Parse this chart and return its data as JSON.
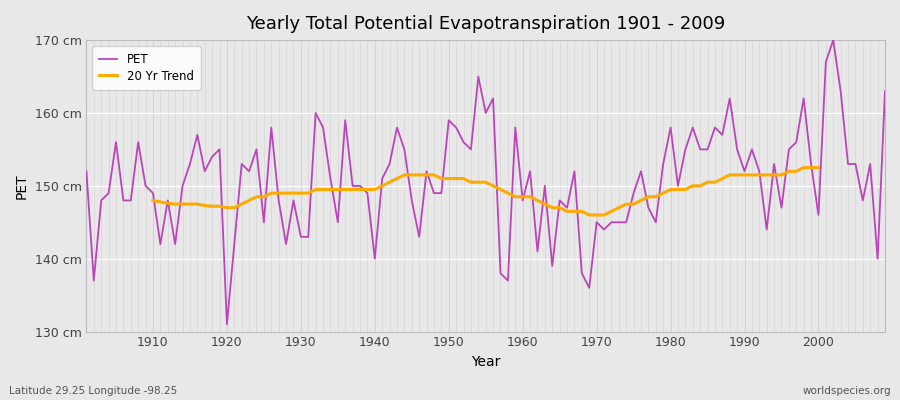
{
  "title": "Yearly Total Potential Evapotranspiration 1901 - 2009",
  "xlabel": "Year",
  "ylabel": "PET",
  "subtitle_left": "Latitude 29.25 Longitude -98.25",
  "subtitle_right": "worldspecies.org",
  "ylim": [
    130,
    170
  ],
  "yticks": [
    130,
    140,
    150,
    160,
    170
  ],
  "ytick_labels": [
    "130 cm",
    "140 cm",
    "150 cm",
    "160 cm",
    "170 cm"
  ],
  "pet_color": "#bb44bb",
  "trend_color": "#ffaa00",
  "fig_bg_color": "#e8e8e8",
  "plot_bg_color": "#e8e8e8",
  "grid_color": "#ffffff",
  "pet_label": "PET",
  "trend_label": "20 Yr Trend",
  "years": [
    1901,
    1902,
    1903,
    1904,
    1905,
    1906,
    1907,
    1908,
    1909,
    1910,
    1911,
    1912,
    1913,
    1914,
    1915,
    1916,
    1917,
    1918,
    1919,
    1920,
    1921,
    1922,
    1923,
    1924,
    1925,
    1926,
    1927,
    1928,
    1929,
    1930,
    1931,
    1932,
    1933,
    1934,
    1935,
    1936,
    1937,
    1938,
    1939,
    1940,
    1941,
    1942,
    1943,
    1944,
    1945,
    1946,
    1947,
    1948,
    1949,
    1950,
    1951,
    1952,
    1953,
    1954,
    1955,
    1956,
    1957,
    1958,
    1959,
    1960,
    1961,
    1962,
    1963,
    1964,
    1965,
    1966,
    1967,
    1968,
    1969,
    1970,
    1971,
    1972,
    1973,
    1974,
    1975,
    1976,
    1977,
    1978,
    1979,
    1980,
    1981,
    1982,
    1983,
    1984,
    1985,
    1986,
    1987,
    1988,
    1989,
    1990,
    1991,
    1992,
    1993,
    1994,
    1995,
    1996,
    1997,
    1998,
    1999,
    2000,
    2001,
    2002,
    2003,
    2004,
    2005,
    2006,
    2007,
    2008,
    2009
  ],
  "pet_values": [
    152,
    137,
    148,
    149,
    156,
    148,
    148,
    156,
    150,
    149,
    142,
    148,
    142,
    150,
    153,
    157,
    152,
    154,
    155,
    131,
    142,
    153,
    152,
    155,
    145,
    158,
    148,
    142,
    148,
    143,
    143,
    160,
    158,
    151,
    145,
    159,
    150,
    150,
    149,
    140,
    151,
    153,
    158,
    155,
    148,
    143,
    152,
    149,
    149,
    159,
    158,
    156,
    155,
    165,
    160,
    162,
    138,
    137,
    158,
    148,
    152,
    141,
    150,
    139,
    148,
    147,
    152,
    138,
    136,
    145,
    144,
    145,
    145,
    145,
    149,
    152,
    147,
    145,
    153,
    158,
    150,
    155,
    158,
    155,
    155,
    158,
    157,
    162,
    155,
    152,
    155,
    152,
    144,
    153,
    147,
    155,
    156,
    162,
    153,
    146,
    167,
    170,
    163,
    153,
    153,
    148,
    153,
    140,
    163
  ],
  "trend_values": [
    null,
    null,
    null,
    null,
    null,
    null,
    null,
    null,
    null,
    148.0,
    147.8,
    147.6,
    147.5,
    147.5,
    147.5,
    147.5,
    147.3,
    147.2,
    147.2,
    147.0,
    147.0,
    147.5,
    148.0,
    148.5,
    148.5,
    149.0,
    149.0,
    149.0,
    149.0,
    149.0,
    149.0,
    149.5,
    149.5,
    149.5,
    149.5,
    149.5,
    149.5,
    149.5,
    149.5,
    149.5,
    150.0,
    150.5,
    151.0,
    151.5,
    151.5,
    151.5,
    151.5,
    151.5,
    151.0,
    151.0,
    151.0,
    151.0,
    150.5,
    150.5,
    150.5,
    150.0,
    149.5,
    149.0,
    148.5,
    148.5,
    148.5,
    148.0,
    147.5,
    147.0,
    147.0,
    146.5,
    146.5,
    146.5,
    146.0,
    146.0,
    146.0,
    146.5,
    147.0,
    147.5,
    147.5,
    148.0,
    148.5,
    148.5,
    149.0,
    149.5,
    149.5,
    149.5,
    150.0,
    150.0,
    150.5,
    150.5,
    151.0,
    151.5,
    151.5,
    151.5,
    151.5,
    151.5,
    151.5,
    151.5,
    151.5,
    152.0,
    152.0,
    152.5,
    152.5,
    152.5,
    null,
    null,
    null,
    null,
    null,
    null,
    null,
    null,
    null
  ]
}
